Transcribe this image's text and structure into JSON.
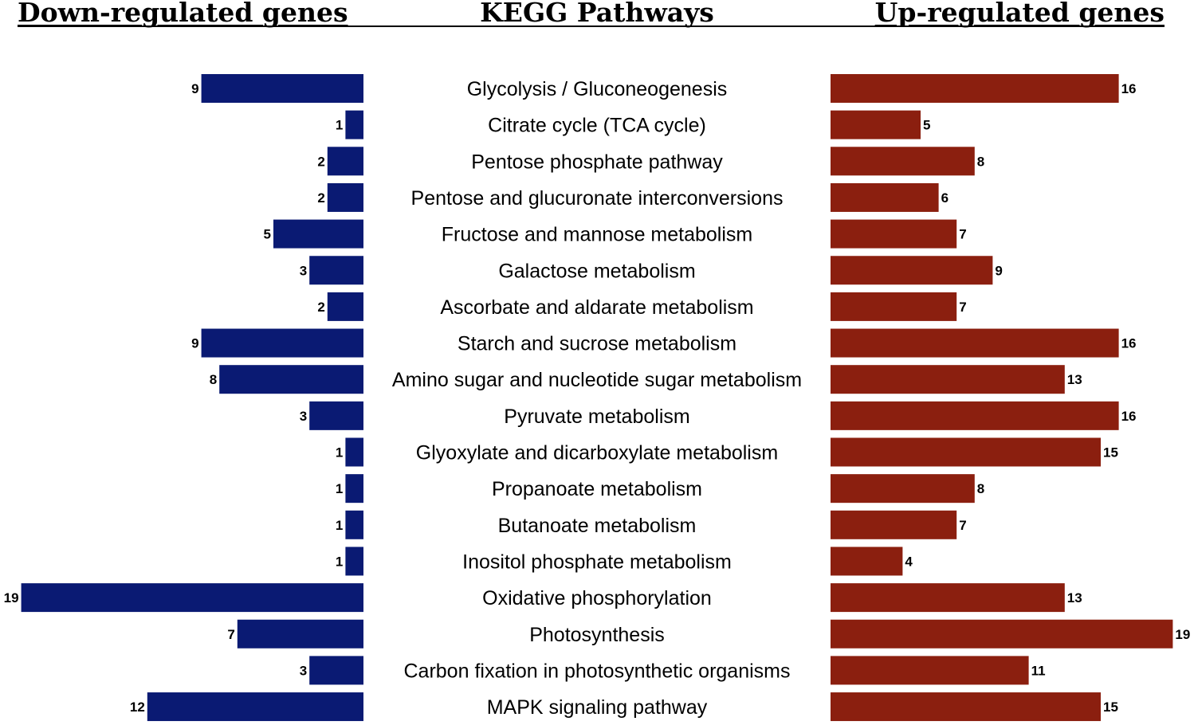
{
  "headers": {
    "down": "Down-regulated genes",
    "middle": "KEGG Pathways",
    "up": "Up-regulated genes"
  },
  "colors": {
    "down": "#0a1a73",
    "up": "#8b1f0f"
  },
  "chart_data": {
    "type": "bar",
    "title": "KEGG Pathways",
    "orientation": "horizontal-diverging",
    "categories": [
      "Glycolysis / Gluconeogenesis",
      "Citrate cycle (TCA cycle)",
      "Pentose phosphate pathway",
      "Pentose and glucuronate interconversions",
      "Fructose and mannose metabolism",
      "Galactose metabolism",
      "Ascorbate and aldarate metabolism",
      "Starch and sucrose metabolism",
      "Amino sugar and nucleotide sugar metabolism",
      "Pyruvate metabolism",
      "Glyoxylate and dicarboxylate metabolism",
      "Propanoate metabolism",
      "Butanoate metabolism",
      "Inositol phosphate metabolism",
      "Oxidative phosphorylation",
      "Photosynthesis",
      "Carbon fixation in photosynthetic organisms",
      "MAPK signaling pathway"
    ],
    "series": [
      {
        "name": "Down-regulated genes",
        "values": [
          9,
          1,
          2,
          2,
          5,
          3,
          2,
          9,
          8,
          3,
          1,
          1,
          1,
          1,
          19,
          7,
          3,
          12
        ]
      },
      {
        "name": "Up-regulated genes",
        "values": [
          16,
          5,
          8,
          6,
          7,
          9,
          7,
          16,
          13,
          16,
          15,
          8,
          7,
          4,
          13,
          19,
          11,
          15
        ]
      }
    ],
    "xlim": [
      0,
      19
    ]
  }
}
